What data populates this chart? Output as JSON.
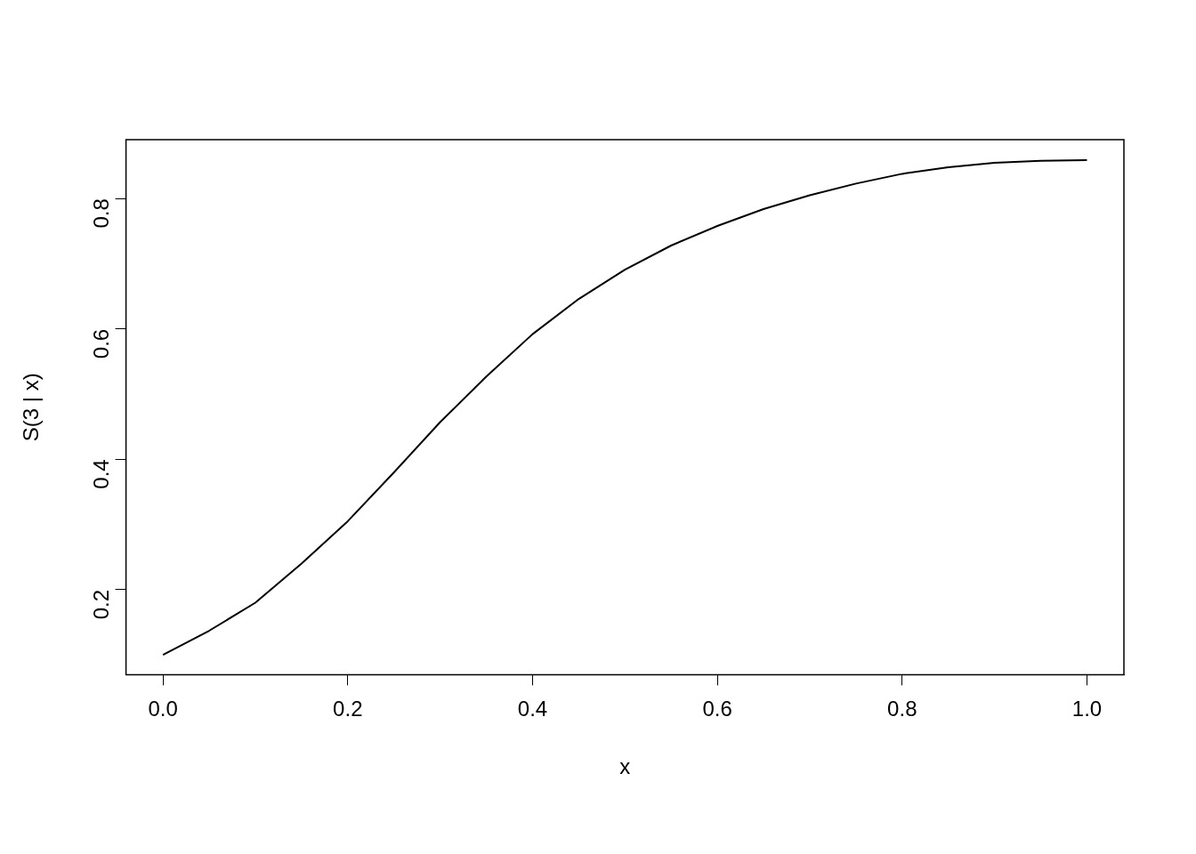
{
  "chart_data": {
    "type": "line",
    "xlabel": "x",
    "ylabel": "S(3 | x)",
    "x": [
      0,
      0.05,
      0.1,
      0.15,
      0.2,
      0.25,
      0.3,
      0.35,
      0.4,
      0.45,
      0.5,
      0.55,
      0.6,
      0.65,
      0.7,
      0.75,
      0.8,
      0.85,
      0.9,
      0.95,
      1.0
    ],
    "series": [
      {
        "color": "#000000",
        "values": [
          0.1,
          0.137,
          0.18,
          0.24,
          0.305,
          0.38,
          0.457,
          0.527,
          0.592,
          0.646,
          0.691,
          0.728,
          0.758,
          0.784,
          0.805,
          0.823,
          0.838,
          0.848,
          0.855,
          0.858,
          0.859
        ]
      }
    ],
    "xlim": [
      -0.04,
      1.04
    ],
    "ylim": [
      0.0696,
      0.8904
    ],
    "xticks": [
      {
        "value": 0,
        "label": "0.0"
      },
      0.2,
      0.4,
      0.6,
      0.8,
      {
        "value": 1,
        "label": "1.0"
      }
    ],
    "yticks": [
      0.2,
      0.4,
      0.6,
      0.8
    ],
    "grid": false,
    "legend": false,
    "marker": "none",
    "line_style": "solid"
  }
}
